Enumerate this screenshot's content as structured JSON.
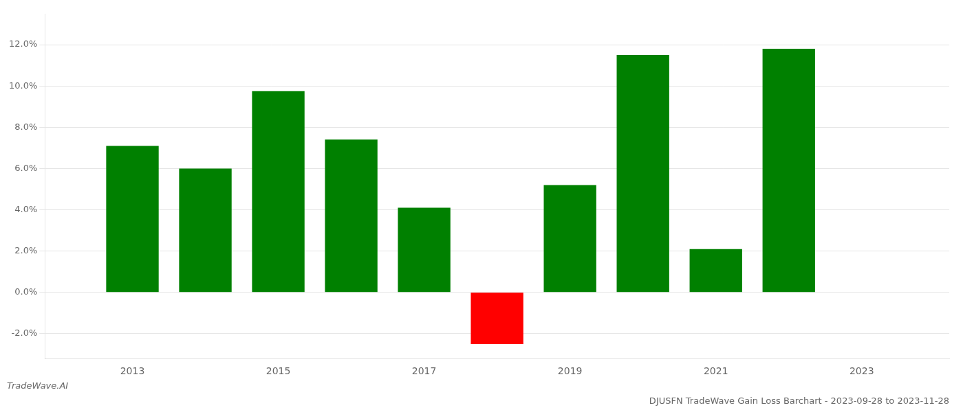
{
  "chart_data": {
    "type": "bar",
    "title": "DJUSFN TradeWave Gain Loss Barchart - 2023-09-28 to 2023-11-28",
    "annotations": [
      "TradeWave.AI"
    ],
    "x": [
      2013,
      2014,
      2015,
      2016,
      2017,
      2018,
      2019,
      2020,
      2021,
      2022
    ],
    "values": [
      0.071,
      0.06,
      0.0975,
      0.074,
      0.041,
      -0.025,
      0.052,
      0.115,
      0.021,
      0.118
    ],
    "colors": [
      "#008000",
      "#008000",
      "#008000",
      "#008000",
      "#008000",
      "#ff0000",
      "#008000",
      "#008000",
      "#008000",
      "#008000"
    ],
    "xlim": [
      2011.8,
      2024.2
    ],
    "xticks": [
      2013,
      2015,
      2017,
      2019,
      2021,
      2023
    ],
    "ylim": [
      -0.032,
      0.135
    ],
    "yticks": [
      {
        "value": -0.02,
        "label": "-2.0%"
      },
      {
        "value": 0.0,
        "label": "0.0%"
      },
      {
        "value": 0.02,
        "label": "2.0%"
      },
      {
        "value": 0.04,
        "label": "4.0%"
      },
      {
        "value": 0.06,
        "label": "6.0%"
      },
      {
        "value": 0.08,
        "label": "8.0%"
      },
      {
        "value": 0.1,
        "label": "10.0%"
      },
      {
        "value": 0.12,
        "label": "12.0%"
      }
    ],
    "grid": "y"
  }
}
